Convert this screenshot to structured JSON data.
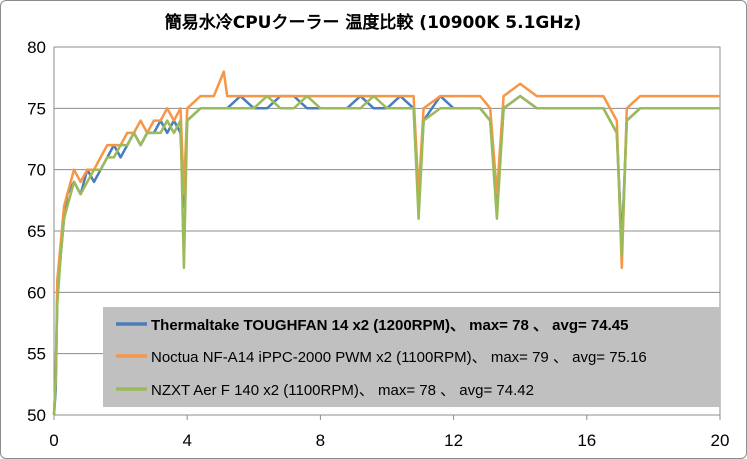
{
  "chart_data": {
    "type": "line",
    "title": "簡易水冷CPUクーラー 温度比較 (10900K 5.1GHz)",
    "xlabel": "",
    "ylabel": "",
    "xlim": [
      0,
      20
    ],
    "ylim": [
      50,
      80
    ],
    "x_ticks": [
      "0",
      "4",
      "8",
      "12",
      "16",
      "20"
    ],
    "y_ticks": [
      "50",
      "55",
      "60",
      "65",
      "70",
      "75",
      "80"
    ],
    "grid": "horizontal",
    "legend_position": "bottom-center",
    "series": [
      {
        "name": "Thermaltake TOUGHFAN 14 x2 (1200RPM)、 max= 78 、 avg= 74.45",
        "color": "#4a7ebb",
        "bold": true,
        "points": [
          [
            0,
            50
          ],
          [
            0.05,
            52
          ],
          [
            0.1,
            60
          ],
          [
            0.2,
            63
          ],
          [
            0.3,
            66
          ],
          [
            0.4,
            68
          ],
          [
            0.6,
            69
          ],
          [
            0.8,
            68
          ],
          [
            1.0,
            70
          ],
          [
            1.2,
            69
          ],
          [
            1.4,
            70
          ],
          [
            1.6,
            71
          ],
          [
            1.8,
            72
          ],
          [
            2.0,
            71
          ],
          [
            2.2,
            72
          ],
          [
            2.4,
            73
          ],
          [
            2.6,
            72
          ],
          [
            2.8,
            73
          ],
          [
            3.0,
            73
          ],
          [
            3.2,
            74
          ],
          [
            3.4,
            73
          ],
          [
            3.6,
            74
          ],
          [
            3.8,
            73
          ],
          [
            3.9,
            67
          ],
          [
            4.0,
            74
          ],
          [
            4.4,
            75
          ],
          [
            4.8,
            75
          ],
          [
            5.2,
            75
          ],
          [
            5.6,
            76
          ],
          [
            6.0,
            75
          ],
          [
            6.4,
            75
          ],
          [
            6.8,
            76
          ],
          [
            7.2,
            76
          ],
          [
            7.6,
            75
          ],
          [
            8.0,
            75
          ],
          [
            8.4,
            75
          ],
          [
            8.8,
            75
          ],
          [
            9.2,
            76
          ],
          [
            9.6,
            75
          ],
          [
            10.0,
            75
          ],
          [
            10.4,
            76
          ],
          [
            10.8,
            75
          ],
          [
            10.95,
            67
          ],
          [
            11.1,
            74
          ],
          [
            11.6,
            76
          ],
          [
            12.0,
            75
          ],
          [
            12.4,
            75
          ],
          [
            12.8,
            75
          ],
          [
            13.1,
            74
          ],
          [
            13.3,
            67
          ],
          [
            13.5,
            75
          ],
          [
            14.0,
            76
          ],
          [
            14.5,
            75
          ],
          [
            15.0,
            75
          ],
          [
            15.5,
            75
          ],
          [
            16.0,
            75
          ],
          [
            16.5,
            75
          ],
          [
            16.9,
            73
          ],
          [
            17.05,
            64
          ],
          [
            17.2,
            74
          ],
          [
            17.6,
            75
          ],
          [
            18.0,
            75
          ],
          [
            18.5,
            75
          ],
          [
            19.0,
            75
          ],
          [
            19.5,
            75
          ],
          [
            20.0,
            75
          ]
        ]
      },
      {
        "name": "Noctua NF-A14 iPPC-2000 PWM x2 (1100RPM)、 max= 79 、 avg= 75.16",
        "color": "#f79646",
        "bold": false,
        "points": [
          [
            0,
            50
          ],
          [
            0.05,
            53
          ],
          [
            0.1,
            61
          ],
          [
            0.2,
            64
          ],
          [
            0.3,
            67
          ],
          [
            0.4,
            68
          ],
          [
            0.6,
            70
          ],
          [
            0.8,
            69
          ],
          [
            1.0,
            70
          ],
          [
            1.2,
            70
          ],
          [
            1.4,
            71
          ],
          [
            1.6,
            72
          ],
          [
            1.8,
            72
          ],
          [
            2.0,
            72
          ],
          [
            2.2,
            73
          ],
          [
            2.4,
            73
          ],
          [
            2.6,
            74
          ],
          [
            2.8,
            73
          ],
          [
            3.0,
            74
          ],
          [
            3.2,
            74
          ],
          [
            3.4,
            75
          ],
          [
            3.6,
            74
          ],
          [
            3.8,
            75
          ],
          [
            3.9,
            68
          ],
          [
            4.0,
            75
          ],
          [
            4.4,
            76
          ],
          [
            4.8,
            76
          ],
          [
            5.1,
            78
          ],
          [
            5.2,
            76
          ],
          [
            5.6,
            76
          ],
          [
            6.0,
            76
          ],
          [
            6.4,
            76
          ],
          [
            6.8,
            76
          ],
          [
            7.2,
            76
          ],
          [
            7.6,
            76
          ],
          [
            8.0,
            76
          ],
          [
            8.4,
            76
          ],
          [
            8.8,
            76
          ],
          [
            9.2,
            76
          ],
          [
            9.6,
            76
          ],
          [
            10.0,
            76
          ],
          [
            10.4,
            76
          ],
          [
            10.8,
            76
          ],
          [
            10.95,
            68
          ],
          [
            11.1,
            75
          ],
          [
            11.6,
            76
          ],
          [
            12.0,
            76
          ],
          [
            12.4,
            76
          ],
          [
            12.8,
            76
          ],
          [
            13.1,
            75
          ],
          [
            13.3,
            68
          ],
          [
            13.5,
            76
          ],
          [
            14.0,
            77
          ],
          [
            14.5,
            76
          ],
          [
            15.0,
            76
          ],
          [
            15.5,
            76
          ],
          [
            16.0,
            76
          ],
          [
            16.5,
            76
          ],
          [
            16.9,
            74
          ],
          [
            17.05,
            62
          ],
          [
            17.2,
            75
          ],
          [
            17.6,
            76
          ],
          [
            18.0,
            76
          ],
          [
            18.5,
            76
          ],
          [
            19.0,
            76
          ],
          [
            19.5,
            76
          ],
          [
            20.0,
            76
          ]
        ]
      },
      {
        "name": "NZXT Aer F 140 x2 (1100RPM)、 max= 78 、 avg= 74.42",
        "color": "#9bbb59",
        "bold": false,
        "points": [
          [
            0,
            50
          ],
          [
            0.05,
            53
          ],
          [
            0.1,
            59
          ],
          [
            0.2,
            63
          ],
          [
            0.3,
            66
          ],
          [
            0.4,
            67
          ],
          [
            0.6,
            69
          ],
          [
            0.8,
            68
          ],
          [
            1.0,
            69
          ],
          [
            1.2,
            70
          ],
          [
            1.4,
            70
          ],
          [
            1.6,
            71
          ],
          [
            1.8,
            71
          ],
          [
            2.0,
            72
          ],
          [
            2.2,
            72
          ],
          [
            2.4,
            73
          ],
          [
            2.6,
            72
          ],
          [
            2.8,
            73
          ],
          [
            3.0,
            73
          ],
          [
            3.2,
            73
          ],
          [
            3.4,
            74
          ],
          [
            3.6,
            73
          ],
          [
            3.8,
            74
          ],
          [
            3.9,
            62
          ],
          [
            4.0,
            74
          ],
          [
            4.4,
            75
          ],
          [
            4.8,
            75
          ],
          [
            5.2,
            75
          ],
          [
            5.6,
            75
          ],
          [
            6.0,
            75
          ],
          [
            6.4,
            76
          ],
          [
            6.8,
            75
          ],
          [
            7.2,
            75
          ],
          [
            7.6,
            76
          ],
          [
            8.0,
            75
          ],
          [
            8.4,
            75
          ],
          [
            8.8,
            75
          ],
          [
            9.2,
            75
          ],
          [
            9.6,
            76
          ],
          [
            10.0,
            75
          ],
          [
            10.4,
            75
          ],
          [
            10.8,
            75
          ],
          [
            10.95,
            66
          ],
          [
            11.1,
            74
          ],
          [
            11.6,
            75
          ],
          [
            12.0,
            75
          ],
          [
            12.4,
            75
          ],
          [
            12.8,
            75
          ],
          [
            13.1,
            74
          ],
          [
            13.3,
            66
          ],
          [
            13.5,
            75
          ],
          [
            14.0,
            76
          ],
          [
            14.5,
            75
          ],
          [
            15.0,
            75
          ],
          [
            15.5,
            75
          ],
          [
            16.0,
            75
          ],
          [
            16.5,
            75
          ],
          [
            16.9,
            73
          ],
          [
            17.05,
            63
          ],
          [
            17.2,
            74
          ],
          [
            17.6,
            75
          ],
          [
            18.0,
            75
          ],
          [
            18.5,
            75
          ],
          [
            19.0,
            75
          ],
          [
            19.5,
            75
          ],
          [
            20.0,
            75
          ]
        ]
      }
    ]
  }
}
